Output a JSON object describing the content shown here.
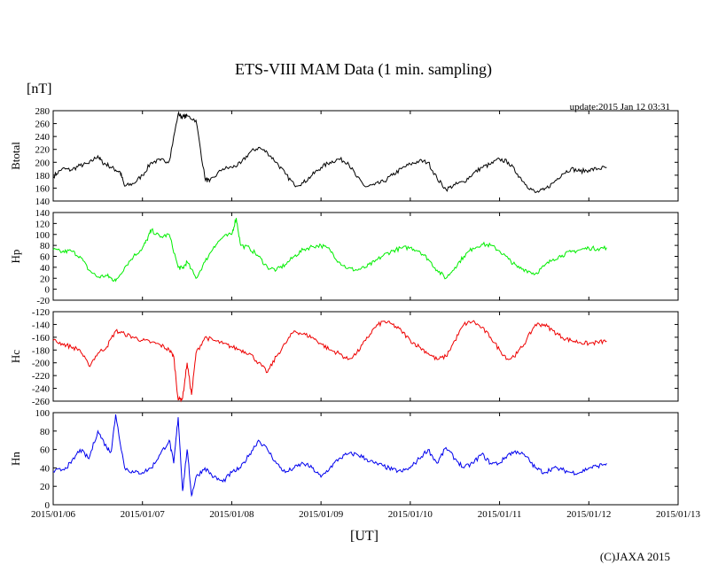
{
  "chart_data": {
    "type": "line",
    "title": "ETS-VIII MAM Data (1 min. sampling)",
    "unit_label": "[nT]",
    "update_text": "update:2015 Jan 12 03:31",
    "xlabel": "[UT]",
    "copyright": "(C)JAXA 2015",
    "x_ticks": [
      "2015/01/06",
      "2015/01/07",
      "2015/01/08",
      "2015/01/09",
      "2015/01/10",
      "2015/01/11",
      "2015/01/12",
      "2015/01/13"
    ],
    "xlim_days": [
      0,
      7
    ],
    "grid": false,
    "panels": [
      {
        "name": "Btotal",
        "color": "#000000",
        "ylim": [
          140,
          280
        ],
        "yticks": [
          140,
          160,
          180,
          200,
          220,
          240,
          260,
          280
        ],
        "x": [
          0,
          0.1,
          0.2,
          0.3,
          0.4,
          0.5,
          0.55,
          0.62,
          0.7,
          0.75,
          0.8,
          0.9,
          1.0,
          1.1,
          1.2,
          1.3,
          1.4,
          1.45,
          1.5,
          1.6,
          1.7,
          1.75,
          1.9,
          2.0,
          2.1,
          2.2,
          2.3,
          2.4,
          2.5,
          2.6,
          2.7,
          2.8,
          2.9,
          3.0,
          3.1,
          3.2,
          3.3,
          3.4,
          3.5,
          3.6,
          3.7,
          3.8,
          3.9,
          4.0,
          4.1,
          4.2,
          4.3,
          4.4,
          4.5,
          4.6,
          4.7,
          4.8,
          4.9,
          5.0,
          5.1,
          5.2,
          5.3,
          5.4,
          5.5,
          5.6,
          5.7,
          5.8,
          5.9,
          6.0,
          6.1,
          6.2
        ],
        "values": [
          178,
          190,
          188,
          195,
          198,
          210,
          200,
          195,
          188,
          185,
          163,
          167,
          180,
          200,
          203,
          202,
          275,
          270,
          272,
          265,
          175,
          170,
          190,
          192,
          198,
          215,
          223,
          215,
          200,
          182,
          165,
          168,
          180,
          192,
          200,
          205,
          200,
          177,
          162,
          165,
          170,
          180,
          190,
          197,
          202,
          200,
          175,
          158,
          165,
          170,
          182,
          192,
          197,
          205,
          200,
          182,
          165,
          153,
          157,
          168,
          182,
          190,
          186,
          188,
          190,
          192
        ]
      },
      {
        "name": "Hp",
        "color": "#00ee00",
        "ylim": [
          -20,
          140
        ],
        "yticks": [
          -20,
          0,
          20,
          40,
          60,
          80,
          100,
          120,
          140
        ],
        "x": [
          0,
          0.1,
          0.2,
          0.3,
          0.4,
          0.5,
          0.6,
          0.65,
          0.7,
          0.8,
          0.9,
          1.0,
          1.05,
          1.1,
          1.2,
          1.3,
          1.4,
          1.45,
          1.5,
          1.6,
          1.7,
          1.8,
          1.9,
          2.0,
          2.05,
          2.1,
          2.2,
          2.3,
          2.4,
          2.5,
          2.6,
          2.7,
          2.8,
          2.9,
          3.0,
          3.1,
          3.2,
          3.3,
          3.4,
          3.5,
          3.6,
          3.7,
          3.8,
          3.9,
          4.0,
          4.1,
          4.2,
          4.3,
          4.4,
          4.5,
          4.6,
          4.7,
          4.8,
          4.9,
          5.0,
          5.1,
          5.2,
          5.3,
          5.4,
          5.5,
          5.6,
          5.7,
          5.8,
          5.9,
          6.0,
          6.1,
          6.2
        ],
        "values": [
          72,
          68,
          70,
          60,
          35,
          22,
          25,
          20,
          15,
          40,
          60,
          75,
          90,
          108,
          95,
          100,
          40,
          38,
          50,
          20,
          50,
          78,
          95,
          100,
          130,
          80,
          75,
          60,
          40,
          35,
          45,
          60,
          72,
          78,
          80,
          72,
          50,
          38,
          35,
          40,
          50,
          62,
          70,
          75,
          76,
          70,
          55,
          35,
          20,
          40,
          60,
          75,
          82,
          80,
          70,
          55,
          40,
          35,
          28,
          42,
          55,
          62,
          68,
          72,
          75,
          74,
          76
        ]
      },
      {
        "name": "Hc",
        "color": "#ee0000",
        "ylim": [
          -260,
          -120
        ],
        "yticks": [
          -260,
          -240,
          -220,
          -200,
          -180,
          -160,
          -140,
          -120
        ],
        "x": [
          0,
          0.1,
          0.2,
          0.3,
          0.4,
          0.5,
          0.6,
          0.7,
          0.8,
          0.9,
          1.0,
          1.1,
          1.2,
          1.3,
          1.35,
          1.4,
          1.45,
          1.5,
          1.55,
          1.6,
          1.7,
          1.8,
          1.9,
          2.0,
          2.1,
          2.2,
          2.3,
          2.4,
          2.5,
          2.6,
          2.7,
          2.8,
          2.9,
          3.0,
          3.1,
          3.2,
          3.3,
          3.4,
          3.5,
          3.6,
          3.7,
          3.8,
          3.9,
          4.0,
          4.1,
          4.2,
          4.3,
          4.4,
          4.5,
          4.6,
          4.7,
          4.8,
          4.9,
          5.0,
          5.1,
          5.2,
          5.3,
          5.4,
          5.5,
          5.6,
          5.7,
          5.8,
          5.9,
          6.0,
          6.1,
          6.2
        ],
        "values": [
          -165,
          -170,
          -175,
          -180,
          -205,
          -185,
          -175,
          -150,
          -155,
          -160,
          -165,
          -168,
          -172,
          -180,
          -190,
          -258,
          -255,
          -200,
          -250,
          -185,
          -160,
          -165,
          -170,
          -175,
          -180,
          -185,
          -200,
          -215,
          -190,
          -170,
          -150,
          -155,
          -160,
          -170,
          -180,
          -185,
          -195,
          -185,
          -165,
          -145,
          -135,
          -140,
          -150,
          -165,
          -175,
          -185,
          -195,
          -190,
          -165,
          -140,
          -135,
          -145,
          -160,
          -180,
          -195,
          -185,
          -165,
          -140,
          -140,
          -150,
          -160,
          -165,
          -168,
          -170,
          -168,
          -166
        ]
      },
      {
        "name": "Hn",
        "color": "#0000ee",
        "ylim": [
          0,
          100
        ],
        "yticks": [
          0,
          20,
          40,
          60,
          80,
          100
        ],
        "x": [
          0,
          0.1,
          0.2,
          0.3,
          0.4,
          0.5,
          0.6,
          0.65,
          0.7,
          0.8,
          0.9,
          1.0,
          1.1,
          1.2,
          1.3,
          1.35,
          1.4,
          1.45,
          1.5,
          1.55,
          1.6,
          1.7,
          1.8,
          1.9,
          2.0,
          2.1,
          2.2,
          2.3,
          2.4,
          2.5,
          2.6,
          2.7,
          2.8,
          2.9,
          3.0,
          3.1,
          3.2,
          3.3,
          3.4,
          3.5,
          3.6,
          3.7,
          3.8,
          3.9,
          4.0,
          4.1,
          4.2,
          4.3,
          4.4,
          4.5,
          4.6,
          4.7,
          4.8,
          4.9,
          5.0,
          5.1,
          5.2,
          5.3,
          5.4,
          5.5,
          5.6,
          5.7,
          5.8,
          5.9,
          6.0,
          6.1,
          6.2
        ],
        "values": [
          36,
          38,
          45,
          60,
          50,
          80,
          62,
          58,
          98,
          40,
          35,
          35,
          40,
          55,
          70,
          45,
          95,
          15,
          60,
          10,
          30,
          40,
          30,
          25,
          35,
          40,
          55,
          70,
          60,
          45,
          35,
          40,
          45,
          40,
          30,
          40,
          50,
          55,
          55,
          50,
          45,
          42,
          38,
          36,
          40,
          50,
          60,
          45,
          62,
          50,
          40,
          45,
          55,
          45,
          45,
          55,
          58,
          52,
          40,
          35,
          40,
          38,
          35,
          35,
          40,
          42,
          45
        ]
      }
    ]
  }
}
